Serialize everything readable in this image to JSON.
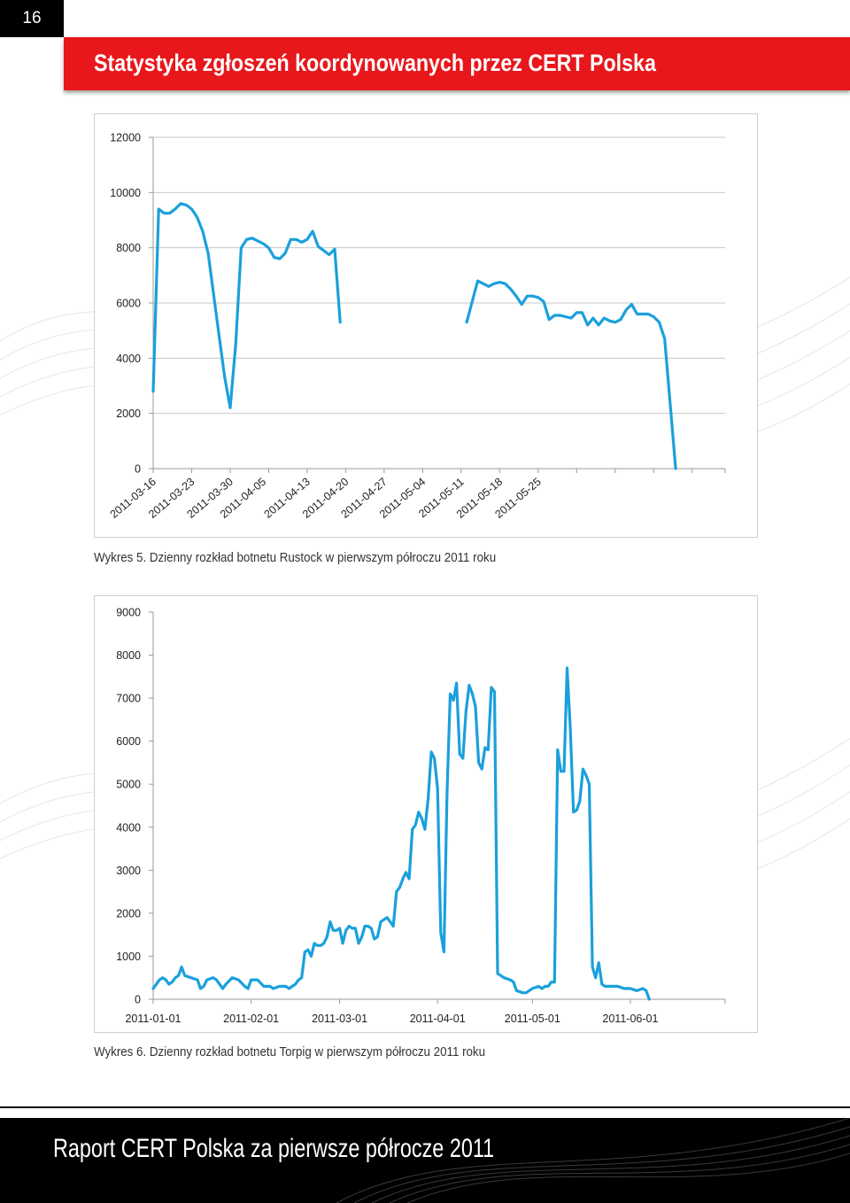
{
  "page_number": "16",
  "header": {
    "title": "Statystyka zgłoszeń koordynowanych przez CERT Polska"
  },
  "footer": {
    "title": "Raport CERT Polska za pierwsze półrocze 2011"
  },
  "colors": {
    "accent": "#e8171b",
    "series": "#1aa0dc",
    "grid": "#c8c8c8"
  },
  "chart_data": [
    {
      "type": "line",
      "title": "",
      "caption": "Wykres 5. Dzienny rozkład botnetu Rustock w pierwszym półroczu 2011 roku",
      "xlabel": "",
      "ylabel": "",
      "ylim": [
        0,
        12000
      ],
      "y_ticks": [
        0,
        2000,
        4000,
        6000,
        8000,
        10000,
        12000
      ],
      "x_range_days": [
        0,
        104
      ],
      "x_tick_labels": [
        "2011-03-16",
        "2011-03-23",
        "2011-03-30",
        "2011-04-05",
        "2011-04-13",
        "2011-04-20",
        "2011-04-27",
        "2011-05-04",
        "2011-05-11",
        "2011-05-18",
        "2011-05-25"
      ],
      "x_tick_days": [
        0,
        7,
        14,
        20,
        28,
        35,
        42,
        49,
        56,
        63,
        70
      ],
      "grid": true,
      "series": [
        {
          "name": "Rustock",
          "segments": [
            [
              [
                0,
                2800
              ],
              [
                1,
                9400
              ],
              [
                2,
                9250
              ],
              [
                3,
                9250
              ],
              [
                4,
                9400
              ],
              [
                5,
                9600
              ],
              [
                6,
                9550
              ],
              [
                7,
                9400
              ],
              [
                8,
                9100
              ],
              [
                9,
                8600
              ],
              [
                10,
                7800
              ],
              [
                11,
                6300
              ],
              [
                12,
                4800
              ],
              [
                13,
                3300
              ],
              [
                14,
                2200
              ],
              [
                15,
                4500
              ],
              [
                16,
                8000
              ],
              [
                17,
                8300
              ],
              [
                18,
                8350
              ],
              [
                19,
                8250
              ],
              [
                20,
                8150
              ],
              [
                21,
                8000
              ],
              [
                22,
                7650
              ],
              [
                23,
                7600
              ],
              [
                24,
                7800
              ],
              [
                25,
                8300
              ],
              [
                26,
                8300
              ],
              [
                27,
                8200
              ],
              [
                28,
                8300
              ],
              [
                29,
                8600
              ],
              [
                30,
                8050
              ],
              [
                31,
                7900
              ],
              [
                32,
                7750
              ],
              [
                33,
                7950
              ],
              [
                34,
                5300
              ]
            ],
            [
              [
                57,
                5300
              ],
              [
                59,
                6800
              ],
              [
                61,
                6600
              ],
              [
                62,
                6700
              ],
              [
                63,
                6750
              ],
              [
                64,
                6700
              ],
              [
                65,
                6500
              ],
              [
                66,
                6250
              ],
              [
                67,
                5950
              ],
              [
                68,
                6250
              ],
              [
                69,
                6250
              ],
              [
                70,
                6200
              ],
              [
                71,
                6050
              ],
              [
                72,
                5400
              ],
              [
                73,
                5550
              ],
              [
                74,
                5550
              ],
              [
                75,
                5500
              ],
              [
                76,
                5450
              ],
              [
                77,
                5650
              ],
              [
                78,
                5650
              ],
              [
                79,
                5200
              ],
              [
                80,
                5450
              ],
              [
                81,
                5200
              ],
              [
                82,
                5450
              ],
              [
                83,
                5350
              ],
              [
                84,
                5300
              ],
              [
                85,
                5400
              ],
              [
                86,
                5750
              ],
              [
                87,
                5950
              ],
              [
                88,
                5600
              ],
              [
                89,
                5600
              ],
              [
                90,
                5600
              ],
              [
                91,
                5500
              ],
              [
                92,
                5300
              ],
              [
                93,
                4700
              ],
              [
                95,
                0
              ]
            ]
          ]
        }
      ]
    },
    {
      "type": "line",
      "title": "",
      "caption": "Wykres 6. Dzienny rozkład botnetu Torpig w pierwszym półroczu 2011 roku",
      "xlabel": "",
      "ylabel": "",
      "ylim": [
        0,
        9000
      ],
      "y_ticks": [
        0,
        1000,
        2000,
        3000,
        4000,
        5000,
        6000,
        7000,
        8000,
        9000
      ],
      "x_range_days": [
        0,
        181
      ],
      "x_tick_labels": [
        "2011-01-01",
        "2011-02-01",
        "2011-03-01",
        "2011-04-01",
        "2011-05-01",
        "2011-06-01"
      ],
      "x_tick_days": [
        0,
        31,
        59,
        90,
        120,
        151
      ],
      "grid": false,
      "series": [
        {
          "name": "Torpig",
          "points": [
            [
              0,
              250
            ],
            [
              1,
              350
            ],
            [
              2,
              450
            ],
            [
              3,
              500
            ],
            [
              4,
              450
            ],
            [
              5,
              350
            ],
            [
              6,
              400
            ],
            [
              7,
              500
            ],
            [
              8,
              550
            ],
            [
              9,
              750
            ],
            [
              10,
              550
            ],
            [
              12,
              500
            ],
            [
              14,
              450
            ],
            [
              15,
              250
            ],
            [
              16,
              300
            ],
            [
              17,
              450
            ],
            [
              19,
              500
            ],
            [
              20,
              450
            ],
            [
              21,
              350
            ],
            [
              22,
              250
            ],
            [
              23,
              350
            ],
            [
              25,
              500
            ],
            [
              27,
              450
            ],
            [
              29,
              300
            ],
            [
              30,
              250
            ],
            [
              31,
              450
            ],
            [
              33,
              450
            ],
            [
              35,
              300
            ],
            [
              37,
              300
            ],
            [
              38,
              250
            ],
            [
              40,
              300
            ],
            [
              42,
              300
            ],
            [
              43,
              250
            ],
            [
              44,
              300
            ],
            [
              45,
              350
            ],
            [
              46,
              450
            ],
            [
              47,
              500
            ],
            [
              48,
              1100
            ],
            [
              49,
              1150
            ],
            [
              50,
              1000
            ],
            [
              51,
              1300
            ],
            [
              52,
              1250
            ],
            [
              53,
              1250
            ],
            [
              54,
              1300
            ],
            [
              55,
              1450
            ],
            [
              56,
              1800
            ],
            [
              57,
              1600
            ],
            [
              58,
              1600
            ],
            [
              59,
              1650
            ],
            [
              60,
              1300
            ],
            [
              61,
              1600
            ],
            [
              62,
              1700
            ],
            [
              63,
              1650
            ],
            [
              64,
              1650
            ],
            [
              65,
              1300
            ],
            [
              66,
              1450
            ],
            [
              67,
              1700
            ],
            [
              68,
              1700
            ],
            [
              69,
              1650
            ],
            [
              70,
              1400
            ],
            [
              71,
              1450
            ],
            [
              72,
              1800
            ],
            [
              73,
              1850
            ],
            [
              74,
              1900
            ],
            [
              75,
              1800
            ],
            [
              76,
              1700
            ],
            [
              77,
              2500
            ],
            [
              78,
              2600
            ],
            [
              79,
              2800
            ],
            [
              80,
              2950
            ],
            [
              81,
              2800
            ],
            [
              82,
              3950
            ],
            [
              83,
              4050
            ],
            [
              84,
              4350
            ],
            [
              85,
              4200
            ],
            [
              86,
              3950
            ],
            [
              87,
              4650
            ],
            [
              88,
              5750
            ],
            [
              89,
              5600
            ],
            [
              90,
              4900
            ],
            [
              91,
              1550
            ],
            [
              92,
              1100
            ],
            [
              93,
              4800
            ],
            [
              94,
              7100
            ],
            [
              95,
              6950
            ],
            [
              96,
              7350
            ],
            [
              97,
              5700
            ],
            [
              98,
              5600
            ],
            [
              99,
              6700
            ],
            [
              100,
              7300
            ],
            [
              101,
              7100
            ],
            [
              102,
              6800
            ],
            [
              103,
              5500
            ],
            [
              104,
              5350
            ],
            [
              105,
              5850
            ],
            [
              106,
              5800
            ],
            [
              107,
              7250
            ],
            [
              108,
              7150
            ],
            [
              109,
              600
            ],
            [
              111,
              500
            ],
            [
              113,
              450
            ],
            [
              114,
              400
            ],
            [
              115,
              200
            ],
            [
              117,
              150
            ],
            [
              118,
              150
            ],
            [
              119,
              200
            ],
            [
              120,
              250
            ],
            [
              122,
              300
            ],
            [
              123,
              250
            ],
            [
              124,
              300
            ],
            [
              125,
              300
            ],
            [
              126,
              400
            ],
            [
              127,
              400
            ],
            [
              128,
              5800
            ],
            [
              129,
              5300
            ],
            [
              130,
              5300
            ],
            [
              131,
              7700
            ],
            [
              132,
              6300
            ],
            [
              133,
              4350
            ],
            [
              134,
              4400
            ],
            [
              135,
              4600
            ],
            [
              136,
              5350
            ],
            [
              137,
              5200
            ],
            [
              138,
              5000
            ],
            [
              139,
              750
            ],
            [
              140,
              500
            ],
            [
              141,
              850
            ],
            [
              142,
              350
            ],
            [
              143,
              300
            ],
            [
              145,
              300
            ],
            [
              147,
              300
            ],
            [
              149,
              250
            ],
            [
              151,
              250
            ],
            [
              153,
              200
            ],
            [
              155,
              250
            ],
            [
              156,
              200
            ],
            [
              157,
              0
            ]
          ]
        }
      ]
    }
  ]
}
